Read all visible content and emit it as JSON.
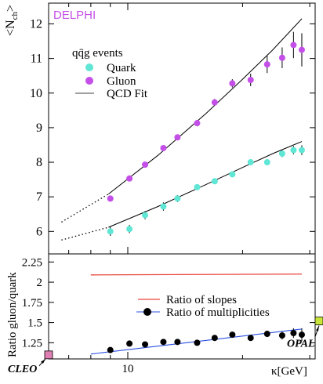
{
  "chart_data": [
    {
      "type": "scatter",
      "panel": "top",
      "label": "DELPHI",
      "ylabel_prefix": "<N",
      "ylabel_sub": "ch",
      "ylabel_suffix": ">",
      "x_scale": "log",
      "xlim": [
        6.2,
        31
      ],
      "ylim": [
        5.35,
        12.6
      ],
      "yticks": [
        "6",
        "7",
        "8",
        "9",
        "10",
        "11",
        "12"
      ],
      "legend_title": "qq̄g events",
      "legend_placement": "top-left",
      "series": [
        {
          "name": "Quark",
          "color": "#5fe6d4",
          "x": [
            9.0,
            10.1,
            11.1,
            12.4,
            13.5,
            15.2,
            16.9,
            18.8,
            21.0,
            23.2,
            25.4,
            27.2,
            28.6
          ],
          "y": [
            6.0,
            6.07,
            6.47,
            6.72,
            6.95,
            7.28,
            7.45,
            7.65,
            8.0,
            8.0,
            8.25,
            8.35,
            8.35
          ],
          "yerr": [
            0.13,
            0.12,
            0.12,
            0.12,
            0.1,
            0.07,
            0.06,
            0.06,
            0.07,
            0.08,
            0.1,
            0.12,
            0.14
          ]
        },
        {
          "name": "Gluon",
          "color": "#c44fe8",
          "x": [
            9.0,
            10.1,
            11.1,
            12.4,
            13.5,
            15.2,
            16.9,
            18.8,
            21.0,
            23.2,
            25.4,
            27.2,
            28.6
          ],
          "y": [
            6.95,
            7.53,
            7.93,
            8.41,
            8.72,
            9.13,
            9.73,
            10.28,
            10.38,
            10.83,
            11.02,
            11.39,
            11.25
          ],
          "yerr": [
            0.08,
            0.07,
            0.07,
            0.07,
            0.08,
            0.09,
            0.1,
            0.12,
            0.18,
            0.25,
            0.3,
            0.38,
            0.48
          ]
        }
      ],
      "fit_name": "QCD Fit",
      "fits": [
        {
          "name": "gluon fit",
          "x": [
            8.9,
            12,
            16,
            20,
            24,
            28.6
          ],
          "y": [
            7.08,
            8.2,
            9.4,
            10.4,
            11.25,
            12.15
          ],
          "extrap_x": [
            6.7,
            8.9
          ],
          "extrap_y": [
            6.27,
            7.08
          ]
        },
        {
          "name": "quark fit",
          "x": [
            8.9,
            12,
            16,
            20,
            24,
            28.6
          ],
          "y": [
            6.12,
            6.72,
            7.35,
            7.85,
            8.25,
            8.6
          ],
          "extrap_x": [
            6.7,
            8.9
          ],
          "extrap_y": [
            5.75,
            6.12
          ]
        }
      ]
    },
    {
      "type": "scatter",
      "panel": "bottom",
      "ylabel": "Ratio gluon/quark",
      "xlabel": "κ[GeV]",
      "x_scale": "log",
      "xlim": [
        6.2,
        31
      ],
      "ylim": [
        1.05,
        2.35
      ],
      "yticks": [
        "1.25",
        "1.5",
        "1.75",
        "2",
        "2.25"
      ],
      "xticks": [
        "10"
      ],
      "legend_placement": "center-right",
      "slopes_ratio": {
        "name": "Ratio of slopes",
        "color": "#e8443a",
        "x": [
          8.0,
          28.6
        ],
        "y": [
          2.09,
          2.1
        ]
      },
      "ratio_fit": {
        "name": "Ratio of multiplicities",
        "color": "#2a4fe0",
        "x": [
          8.0,
          28.6
        ],
        "y": [
          1.11,
          1.42
        ]
      },
      "ratio_points": {
        "color": "#000000",
        "x": [
          9.0,
          10.1,
          11.1,
          12.4,
          13.5,
          15.2,
          16.9,
          18.8,
          21.0,
          23.2,
          25.4,
          27.2,
          28.6
        ],
        "y": [
          1.16,
          1.24,
          1.23,
          1.26,
          1.26,
          1.25,
          1.31,
          1.35,
          1.31,
          1.36,
          1.34,
          1.37,
          1.35
        ],
        "yerr": [
          0.02,
          0.02,
          0.02,
          0.02,
          0.02,
          0.02,
          0.02,
          0.03,
          0.03,
          0.04,
          0.05,
          0.06,
          0.08
        ]
      },
      "markers": [
        {
          "label": "CLEO",
          "color": "#e07fb3",
          "y": 1.1,
          "side": "left"
        },
        {
          "label": "OPAL",
          "color": "#c8e63a",
          "y": 1.52,
          "side": "right"
        }
      ]
    }
  ]
}
